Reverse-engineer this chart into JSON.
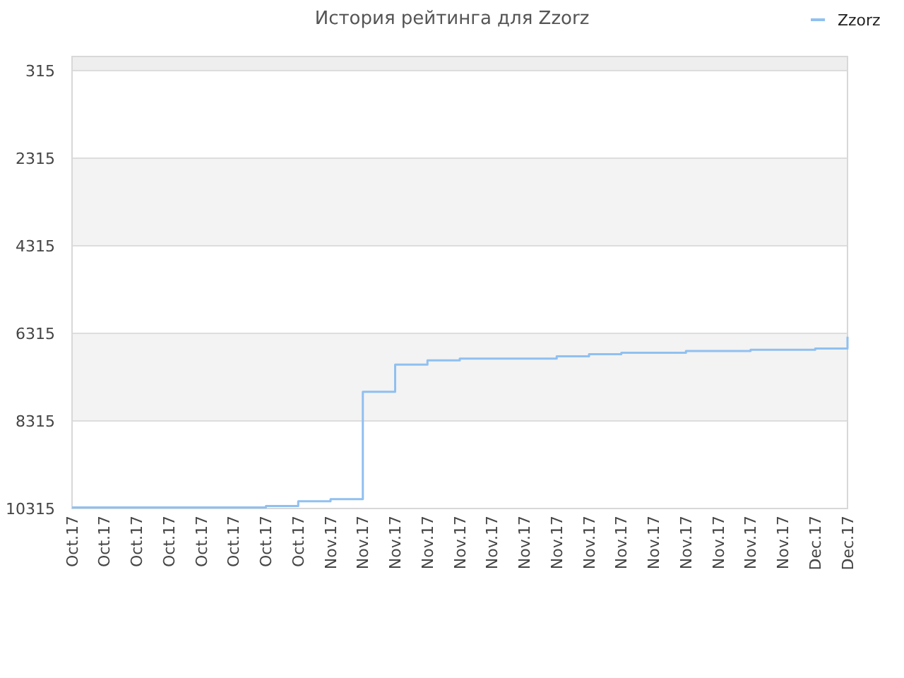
{
  "chart_data": {
    "type": "step",
    "title": "История рейтинга для Zzorz",
    "categories": [
      "Oct.17",
      "Oct.17",
      "Oct.17",
      "Oct.17",
      "Oct.17",
      "Oct.17",
      "Oct.17",
      "Oct.17",
      "Nov.17",
      "Nov.17",
      "Nov.17",
      "Nov.17",
      "Nov.17",
      "Nov.17",
      "Nov.17",
      "Nov.17",
      "Nov.17",
      "Nov.17",
      "Nov.17",
      "Nov.17",
      "Nov.17",
      "Nov.17",
      "Nov.17",
      "Dec.17",
      "Dec.17"
    ],
    "ylim": [
      10315,
      -8
    ],
    "yticks": [
      315,
      2315,
      4315,
      6315,
      8315,
      10315
    ],
    "grid": "y",
    "legend": "top right",
    "series": [
      {
        "name": "Zzorz",
        "color": "#90c0f0",
        "values": [
          10290,
          10290,
          10290,
          10290,
          10290,
          10290,
          10260,
          10150,
          10100,
          7650,
          7030,
          6930,
          6890,
          6890,
          6890,
          6840,
          6790,
          6760,
          6760,
          6720,
          6720,
          6690,
          6690,
          6660,
          6390
        ]
      }
    ]
  }
}
